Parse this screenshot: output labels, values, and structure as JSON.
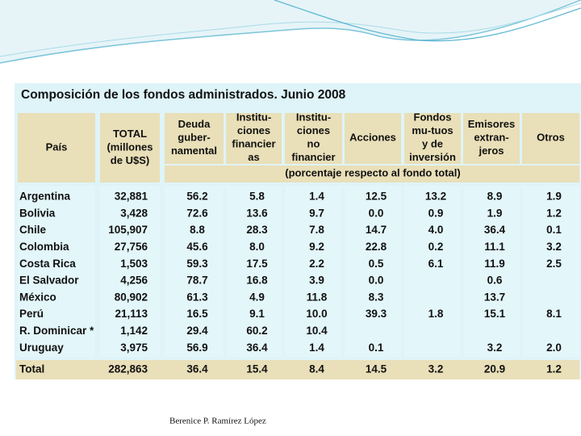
{
  "table": {
    "title": "Composición de los fondos administrados. Junio 2008",
    "headers": [
      [
        "País"
      ],
      [
        "TOTAL",
        "(millones",
        "de U$S)"
      ],
      [
        "Deuda",
        "guber-",
        "namental"
      ],
      [
        "Institu-",
        "ciones",
        "financier",
        "as"
      ],
      [
        "Institu-",
        "ciones",
        "no",
        "financier"
      ],
      [
        "Acciones"
      ],
      [
        "Fondos",
        "mu-tuos",
        "y de",
        "inversión"
      ],
      [
        "Emisores",
        "extran-",
        "jeros"
      ],
      [
        "Otros"
      ]
    ],
    "subheader": "(porcentaje respecto al fondo total)",
    "rows": [
      [
        "Argentina",
        "32,881",
        "56.2",
        "5.8",
        "1.4",
        "12.5",
        "13.2",
        "8.9",
        "1.9"
      ],
      [
        "Bolivia",
        "3,428",
        "72.6",
        "13.6",
        "9.7",
        "0.0",
        "0.9",
        "1.9",
        "1.2"
      ],
      [
        "Chile",
        "105,907",
        "8.8",
        "28.3",
        "7.8",
        "14.7",
        "4.0",
        "36.4",
        "0.1"
      ],
      [
        "Colombia",
        "27,756",
        "45.6",
        "8.0",
        "9.2",
        "22.8",
        "0.2",
        "11.1",
        "3.2"
      ],
      [
        "Costa Rica",
        "1,503",
        "59.3",
        "17.5",
        "2.2",
        "0.5",
        "6.1",
        "11.9",
        "2.5"
      ],
      [
        "El Salvador",
        "4,256",
        "78.7",
        "16.8",
        "3.9",
        "0.0",
        null,
        "0.6",
        null
      ],
      [
        "México",
        "80,902",
        "61.3",
        "4.9",
        "11.8",
        "8.3",
        null,
        "13.7",
        null
      ],
      [
        "Perú",
        "21,113",
        "16.5",
        "9.1",
        "10.0",
        "39.3",
        "1.8",
        "15.1",
        "8.1"
      ],
      [
        "R. Dominicar *",
        "1,142",
        "29.4",
        "60.2",
        "10.4",
        null,
        null,
        null,
        null
      ],
      [
        "Uruguay",
        "3,975",
        "56.9",
        "36.4",
        "1.4",
        "0.1",
        null,
        "3.2",
        "2.0"
      ]
    ],
    "total": [
      "Total",
      "282,863",
      "36.4",
      "15.4",
      "8.4",
      "14.5",
      "3.2",
      "20.9",
      "1.2"
    ]
  },
  "footer": "Berenice P. Ramírez López"
}
